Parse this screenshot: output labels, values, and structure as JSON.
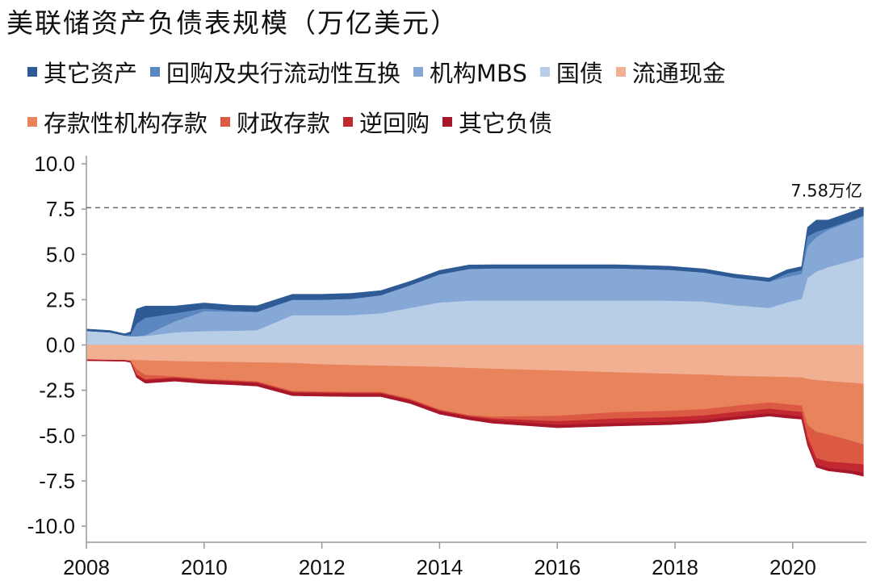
{
  "title": "美联储资产负债表规模（万亿美元）",
  "legend": [
    {
      "name": "其它资产",
      "color": "#2e5b95"
    },
    {
      "name": "回购及央行流动性互换",
      "color": "#5b86c0"
    },
    {
      "name": "机构MBS",
      "color": "#86a8d6"
    },
    {
      "name": "国债",
      "color": "#b8cde6"
    },
    {
      "name": "流通现金",
      "color": "#f2b092"
    },
    {
      "name": "存款性机构存款",
      "color": "#e8835c"
    },
    {
      "name": "财政存款",
      "color": "#dc5a44"
    },
    {
      "name": "逆回购",
      "color": "#c2282f"
    },
    {
      "name": "其它负债",
      "color": "#a8162a"
    }
  ],
  "chart_data": {
    "type": "area",
    "title": "美联储资产负债表规模（万亿美元）",
    "xlabel": "",
    "ylabel": "",
    "xlim": [
      2008,
      2021.25
    ],
    "ylim": [
      -10.0,
      10.0
    ],
    "yticks": [
      "10.0",
      "7.5",
      "5.0",
      "2.5",
      "0.0",
      "-2.5",
      "-5.0",
      "-7.5",
      "-10.0"
    ],
    "xticks": [
      "2008",
      "2010",
      "2012",
      "2014",
      "2016",
      "2018",
      "2020"
    ],
    "annotation": {
      "text": "7.58万亿",
      "y": 7.58,
      "style": "dashed"
    },
    "x": [
      2008.0,
      2008.4,
      2008.65,
      2008.75,
      2008.85,
      2009.0,
      2009.5,
      2010.0,
      2010.5,
      2010.9,
      2011.5,
      2012.0,
      2012.5,
      2013.0,
      2013.5,
      2014.0,
      2014.5,
      2014.9,
      2016.0,
      2017.0,
      2017.9,
      2018.5,
      2019.0,
      2019.6,
      2019.9,
      2020.15,
      2020.25,
      2020.4,
      2020.6,
      2021.0,
      2021.2
    ],
    "series": [
      {
        "name": "国债",
        "side": "assets",
        "values": [
          0.78,
          0.7,
          0.52,
          0.48,
          0.48,
          0.5,
          0.7,
          0.77,
          0.79,
          0.82,
          1.65,
          1.65,
          1.65,
          1.75,
          2.05,
          2.35,
          2.45,
          2.46,
          2.46,
          2.46,
          2.45,
          2.4,
          2.2,
          2.05,
          2.35,
          2.55,
          3.7,
          4.05,
          4.3,
          4.65,
          4.85
        ]
      },
      {
        "name": "机构MBS",
        "side": "assets",
        "values": [
          0.0,
          0.0,
          0.0,
          0.0,
          0.0,
          0.05,
          0.6,
          1.1,
          1.05,
          1.0,
          0.85,
          0.85,
          0.9,
          1.0,
          1.25,
          1.55,
          1.75,
          1.77,
          1.77,
          1.77,
          1.7,
          1.6,
          1.52,
          1.45,
          1.4,
          1.38,
          1.75,
          1.9,
          2.05,
          2.2,
          2.25
        ]
      },
      {
        "name": "回购及央行流动性互换",
        "side": "assets",
        "values": [
          0.0,
          0.0,
          0.0,
          0.1,
          0.7,
          0.95,
          0.45,
          0.15,
          0.05,
          0.02,
          0.0,
          0.0,
          0.0,
          0.0,
          0.0,
          0.0,
          0.0,
          0.0,
          0.0,
          0.0,
          0.0,
          0.0,
          0.0,
          0.0,
          0.2,
          0.2,
          0.55,
          0.3,
          0.1,
          0.05,
          0.05
        ]
      },
      {
        "name": "其它资产",
        "side": "assets",
        "values": [
          0.1,
          0.1,
          0.1,
          0.15,
          0.8,
          0.65,
          0.4,
          0.3,
          0.3,
          0.33,
          0.3,
          0.3,
          0.3,
          0.25,
          0.22,
          0.22,
          0.22,
          0.2,
          0.2,
          0.2,
          0.2,
          0.2,
          0.2,
          0.2,
          0.2,
          0.2,
          0.5,
          0.65,
          0.45,
          0.45,
          0.43
        ]
      },
      {
        "name": "流通现金",
        "side": "liabilities",
        "values": [
          -0.8,
          -0.82,
          -0.83,
          -0.84,
          -0.84,
          -0.86,
          -0.9,
          -0.93,
          -0.95,
          -0.97,
          -1.0,
          -1.08,
          -1.12,
          -1.15,
          -1.18,
          -1.22,
          -1.28,
          -1.32,
          -1.42,
          -1.52,
          -1.6,
          -1.65,
          -1.72,
          -1.76,
          -1.78,
          -1.8,
          -1.88,
          -1.95,
          -2.0,
          -2.1,
          -2.15
        ]
      },
      {
        "name": "存款性机构存款",
        "side": "liabilities",
        "values": [
          -0.02,
          -0.02,
          -0.02,
          -0.05,
          -0.5,
          -0.8,
          -0.85,
          -0.95,
          -1.0,
          -1.05,
          -1.55,
          -1.5,
          -1.48,
          -1.45,
          -1.8,
          -2.35,
          -2.6,
          -2.65,
          -2.5,
          -2.2,
          -2.05,
          -1.9,
          -1.65,
          -1.42,
          -1.5,
          -1.55,
          -2.55,
          -2.85,
          -2.95,
          -3.2,
          -3.35
        ]
      },
      {
        "name": "财政存款",
        "side": "liabilities",
        "values": [
          0.0,
          0.0,
          0.0,
          -0.02,
          -0.3,
          -0.25,
          -0.05,
          -0.05,
          -0.05,
          -0.05,
          -0.05,
          -0.05,
          -0.05,
          -0.05,
          -0.05,
          -0.05,
          -0.05,
          -0.1,
          -0.3,
          -0.35,
          -0.35,
          -0.35,
          -0.35,
          -0.35,
          -0.35,
          -0.35,
          -0.65,
          -1.45,
          -1.5,
          -1.25,
          -1.1
        ]
      },
      {
        "name": "逆回购",
        "side": "liabilities",
        "values": [
          0.0,
          0.0,
          0.0,
          0.0,
          -0.05,
          -0.05,
          -0.05,
          -0.05,
          -0.05,
          -0.05,
          -0.05,
          -0.05,
          -0.05,
          -0.05,
          -0.05,
          -0.05,
          -0.05,
          -0.1,
          -0.2,
          -0.25,
          -0.25,
          -0.25,
          -0.25,
          -0.25,
          -0.25,
          -0.25,
          -0.3,
          -0.35,
          -0.35,
          -0.4,
          -0.45
        ]
      },
      {
        "name": "其它负债",
        "side": "liabilities",
        "values": [
          -0.05,
          -0.05,
          -0.05,
          -0.05,
          -0.1,
          -0.15,
          -0.15,
          -0.15,
          -0.15,
          -0.15,
          -0.15,
          -0.15,
          -0.15,
          -0.15,
          -0.15,
          -0.15,
          -0.15,
          -0.15,
          -0.15,
          -0.15,
          -0.15,
          -0.15,
          -0.15,
          -0.15,
          -0.15,
          -0.15,
          -0.15,
          -0.15,
          -0.15,
          -0.15,
          -0.2
        ]
      }
    ]
  }
}
